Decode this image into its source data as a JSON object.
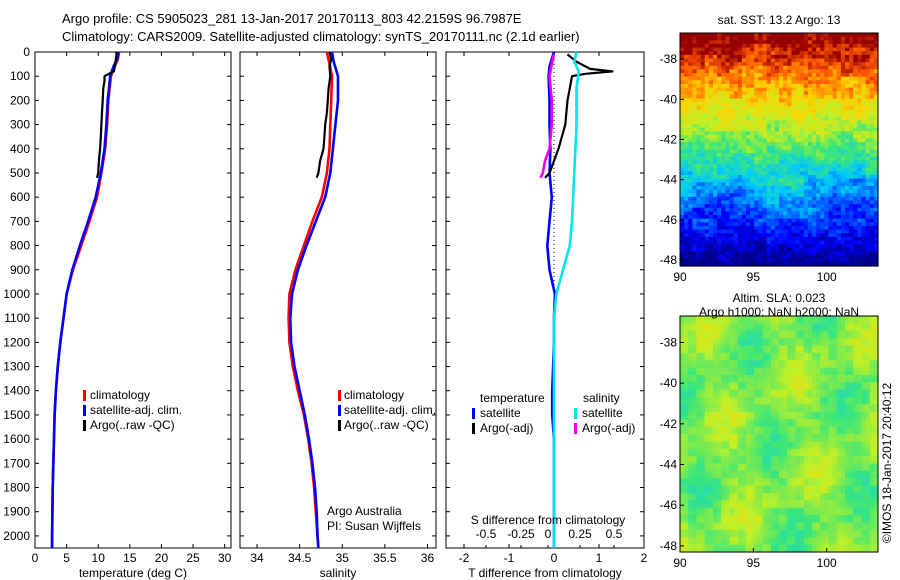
{
  "header": {
    "line1": "Argo profile: CS 5905023_281 13-Jan-2017 20170113_803 42.2159S 96.7987E",
    "line2": "Climatology: CARS2009. Satellite-adjusted climatology: synTS_20170111.nc (2.1d earlier)"
  },
  "credit": "©IMOS 18-Jan-2017 20:40:12",
  "colors": {
    "climatology": "#ff0000",
    "satellite": "#0000ff",
    "argo": "#000000",
    "sal_satellite": "#00e5ee",
    "sal_argo": "#ee00ee"
  },
  "chart_data": [
    {
      "id": "temperature",
      "type": "line",
      "xlabel": "temperature (deg C)",
      "ylabel": "",
      "xlim": [
        0,
        31
      ],
      "ylim": [
        2050,
        0
      ],
      "xticks": [
        "0",
        "5",
        "10",
        "15",
        "20",
        "25",
        "30"
      ],
      "yticks": [
        "0",
        "100",
        "200",
        "300",
        "400",
        "500",
        "600",
        "700",
        "800",
        "900",
        "1000",
        "1100",
        "1200",
        "1300",
        "1400",
        "1500",
        "1600",
        "1700",
        "1800",
        "1900",
        "2000"
      ],
      "legend": {
        "position": "center",
        "entries": [
          "climatology",
          "satellite-adj. clim.",
          "Argo(..raw -QC)"
        ]
      },
      "series": [
        {
          "name": "climatology",
          "color": "#ff0000",
          "points": [
            [
              13.3,
              0
            ],
            [
              13.1,
              30
            ],
            [
              12.6,
              60
            ],
            [
              12.0,
              100
            ],
            [
              11.8,
              150
            ],
            [
              11.6,
              200
            ],
            [
              11.4,
              300
            ],
            [
              11.1,
              400
            ],
            [
              10.5,
              500
            ],
            [
              9.8,
              600
            ],
            [
              8.6,
              700
            ],
            [
              7.3,
              800
            ],
            [
              6.0,
              900
            ],
            [
              5.0,
              1000
            ],
            [
              4.5,
              1100
            ],
            [
              4.0,
              1200
            ],
            [
              3.6,
              1300
            ],
            [
              3.3,
              1400
            ],
            [
              3.1,
              1500
            ],
            [
              3.0,
              1600
            ],
            [
              2.9,
              1700
            ],
            [
              2.8,
              1800
            ],
            [
              2.75,
              1900
            ],
            [
              2.7,
              2000
            ],
            [
              2.7,
              2050
            ]
          ]
        },
        {
          "name": "satellite-adj. clim.",
          "color": "#0000ff",
          "points": [
            [
              13.2,
              0
            ],
            [
              13.0,
              30
            ],
            [
              12.4,
              60
            ],
            [
              11.9,
              100
            ],
            [
              11.7,
              150
            ],
            [
              11.5,
              200
            ],
            [
              11.3,
              300
            ],
            [
              11.0,
              400
            ],
            [
              10.4,
              500
            ],
            [
              9.6,
              600
            ],
            [
              8.4,
              700
            ],
            [
              7.1,
              800
            ],
            [
              5.9,
              900
            ],
            [
              5.0,
              1000
            ],
            [
              4.5,
              1100
            ],
            [
              4.0,
              1200
            ],
            [
              3.6,
              1300
            ],
            [
              3.3,
              1400
            ],
            [
              3.1,
              1500
            ],
            [
              3.0,
              1600
            ],
            [
              2.9,
              1700
            ],
            [
              2.8,
              1800
            ],
            [
              2.75,
              1900
            ],
            [
              2.7,
              2000
            ],
            [
              2.7,
              2050
            ]
          ]
        },
        {
          "name": "Argo(..raw -QC)",
          "color": "#000000",
          "points": [
            [
              12.9,
              0
            ],
            [
              12.8,
              30
            ],
            [
              12.6,
              60
            ],
            [
              12.5,
              80
            ],
            [
              11.7,
              90
            ],
            [
              11.0,
              100
            ],
            [
              11.0,
              120
            ],
            [
              10.8,
              150
            ],
            [
              10.7,
              200
            ],
            [
              10.6,
              250
            ],
            [
              10.5,
              300
            ],
            [
              10.4,
              350
            ],
            [
              10.3,
              400
            ],
            [
              10.1,
              450
            ],
            [
              10.0,
              500
            ],
            [
              9.8,
              520
            ]
          ]
        }
      ]
    },
    {
      "id": "salinity",
      "type": "line",
      "xlabel": "salinity",
      "ylabel": "",
      "xlim": [
        33.8,
        36.1
      ],
      "ylim": [
        2050,
        0
      ],
      "xticks": [
        "34",
        "34.5",
        "35",
        "35.5",
        "36"
      ],
      "legend": {
        "position": "center",
        "entries": [
          "climatology",
          "satellite-adj. clim.",
          "Argo(..raw -QC)"
        ]
      },
      "annotation": [
        "Argo Australia",
        "PI: Susan Wijffels"
      ],
      "series": [
        {
          "name": "climatology",
          "color": "#ff0000",
          "points": [
            [
              34.82,
              0
            ],
            [
              34.85,
              50
            ],
            [
              34.88,
              100
            ],
            [
              34.87,
              200
            ],
            [
              34.86,
              300
            ],
            [
              34.85,
              400
            ],
            [
              34.82,
              500
            ],
            [
              34.76,
              600
            ],
            [
              34.65,
              700
            ],
            [
              34.55,
              800
            ],
            [
              34.45,
              900
            ],
            [
              34.38,
              1000
            ],
            [
              34.37,
              1100
            ],
            [
              34.38,
              1200
            ],
            [
              34.42,
              1300
            ],
            [
              34.48,
              1400
            ],
            [
              34.55,
              1500
            ],
            [
              34.6,
              1600
            ],
            [
              34.64,
              1700
            ],
            [
              34.67,
              1800
            ],
            [
              34.69,
              1900
            ],
            [
              34.71,
              2000
            ],
            [
              34.72,
              2050
            ]
          ]
        },
        {
          "name": "satellite-adj. clim.",
          "color": "#0000ff",
          "points": [
            [
              34.88,
              0
            ],
            [
              34.9,
              40
            ],
            [
              34.95,
              100
            ],
            [
              34.95,
              200
            ],
            [
              34.92,
              300
            ],
            [
              34.89,
              400
            ],
            [
              34.86,
              500
            ],
            [
              34.8,
              600
            ],
            [
              34.69,
              700
            ],
            [
              34.58,
              800
            ],
            [
              34.48,
              900
            ],
            [
              34.41,
              1000
            ],
            [
              34.39,
              1100
            ],
            [
              34.4,
              1200
            ],
            [
              34.44,
              1300
            ],
            [
              34.5,
              1400
            ],
            [
              34.56,
              1500
            ],
            [
              34.61,
              1600
            ],
            [
              34.65,
              1700
            ],
            [
              34.68,
              1800
            ],
            [
              34.7,
              1900
            ],
            [
              34.71,
              2000
            ],
            [
              34.72,
              2050
            ]
          ]
        },
        {
          "name": "Argo(..raw -QC)",
          "color": "#000000",
          "points": [
            [
              34.85,
              0
            ],
            [
              34.87,
              30
            ],
            [
              34.85,
              60
            ],
            [
              34.86,
              100
            ],
            [
              34.84,
              150
            ],
            [
              34.83,
              200
            ],
            [
              34.82,
              250
            ],
            [
              34.8,
              300
            ],
            [
              34.79,
              350
            ],
            [
              34.78,
              400
            ],
            [
              34.74,
              450
            ],
            [
              34.72,
              500
            ],
            [
              34.7,
              520
            ]
          ]
        }
      ]
    },
    {
      "id": "difference",
      "type": "line",
      "xlabel": "T difference from climatology",
      "top_label": "S difference from climatology",
      "xlim": [
        -2.4,
        2.0
      ],
      "ylim": [
        2050,
        0
      ],
      "xticks": [
        "-2",
        "-1",
        "0",
        "1",
        "2"
      ],
      "s_xticks": [
        "-0.5",
        "-0.25",
        "0",
        "0.25",
        "0.5"
      ],
      "legend": {
        "position": "center",
        "groups": [
          {
            "heading": "temperature",
            "entries": [
              "satellite",
              "Argo(-adj)"
            ]
          },
          {
            "heading": "salinity",
            "entries": [
              "satellite",
              "Argo(-adj)"
            ]
          }
        ]
      },
      "series": [
        {
          "name": "temperature satellite",
          "color": "#0000ff",
          "points": [
            [
              0,
              0
            ],
            [
              -0.05,
              30
            ],
            [
              -0.1,
              60
            ],
            [
              -0.12,
              100
            ],
            [
              -0.1,
              200
            ],
            [
              -0.1,
              300
            ],
            [
              -0.08,
              400
            ],
            [
              -0.1,
              500
            ],
            [
              -0.05,
              600
            ],
            [
              -0.1,
              700
            ],
            [
              -0.15,
              800
            ],
            [
              -0.1,
              900
            ],
            [
              0.02,
              1000
            ],
            [
              0,
              1100
            ],
            [
              0,
              1200
            ],
            [
              -0.02,
              1300
            ],
            [
              -0.04,
              1400
            ],
            [
              -0.04,
              1500
            ],
            [
              0,
              1600
            ],
            [
              0,
              1700
            ],
            [
              0,
              1800
            ],
            [
              0,
              1900
            ],
            [
              0,
              2000
            ],
            [
              0,
              2050
            ]
          ]
        },
        {
          "name": "temperature Argo(-adj)",
          "color": "#000000",
          "points": [
            [
              0.3,
              10
            ],
            [
              0.5,
              40
            ],
            [
              0.8,
              70
            ],
            [
              1.3,
              80
            ],
            [
              0.7,
              90
            ],
            [
              0.4,
              100
            ],
            [
              0.35,
              150
            ],
            [
              0.3,
              200
            ],
            [
              0.25,
              300
            ],
            [
              0.1,
              400
            ],
            [
              -0.1,
              500
            ],
            [
              -0.2,
              520
            ]
          ]
        },
        {
          "name": "salinity satellite",
          "color": "#00e5ee",
          "points": [
            [
              0.5,
              0
            ],
            [
              0.45,
              40
            ],
            [
              0.55,
              80
            ],
            [
              0.5,
              150
            ],
            [
              0.5,
              300
            ],
            [
              0.45,
              500
            ],
            [
              0.4,
              700
            ],
            [
              0.35,
              800
            ],
            [
              0.2,
              900
            ],
            [
              0.05,
              1000
            ],
            [
              0.0,
              1100
            ],
            [
              0,
              1300
            ],
            [
              0,
              1500
            ],
            [
              0,
              1700
            ],
            [
              0,
              1900
            ],
            [
              0,
              2050
            ]
          ]
        },
        {
          "name": "salinity Argo(-adj)",
          "color": "#ee00ee",
          "points": [
            [
              0,
              10
            ],
            [
              -0.05,
              50
            ],
            [
              -0.1,
              100
            ],
            [
              -0.05,
              200
            ],
            [
              -0.05,
              300
            ],
            [
              -0.1,
              400
            ],
            [
              -0.2,
              450
            ],
            [
              -0.25,
              500
            ],
            [
              -0.3,
              520
            ]
          ]
        }
      ],
      "reference_line": {
        "style": "dotted",
        "x": 0
      }
    },
    {
      "id": "sst_map",
      "type": "heatmap",
      "title": "sat. SST: 13.2 Argo: 13",
      "xlim": [
        90,
        103.5
      ],
      "ylim": [
        -48.3,
        -36.7
      ],
      "xticks": [
        "90",
        "95",
        "100"
      ],
      "yticks": [
        "-38",
        "-40",
        "-42",
        "-44",
        "-46",
        "-48"
      ],
      "rows_description": "banded: red/orange in north to dark blue in south"
    },
    {
      "id": "sla_map",
      "type": "heatmap",
      "title": "Altim. SLA: 0.023",
      "subtitle": "Argo h1000: NaN h2000: NaN",
      "xlim": [
        90,
        103.5
      ],
      "ylim": [
        -48.3,
        -36.7
      ],
      "xticks": [
        "90",
        "95",
        "100"
      ],
      "yticks": [
        "-38",
        "-40",
        "-42",
        "-44",
        "-46",
        "-48"
      ]
    }
  ]
}
